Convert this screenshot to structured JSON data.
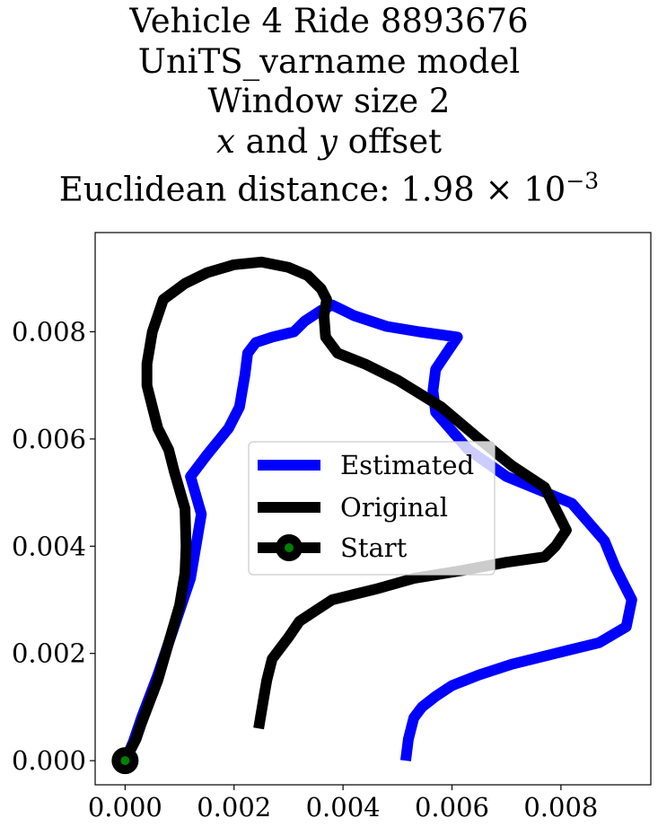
{
  "chart_data": {
    "type": "line",
    "title_lines": [
      "Vehicle 4 Ride 8893676",
      "UniTS_varname model",
      "Window size 2",
      "x and y offset",
      "Euclidean distance: 1.98 × 10^−3"
    ],
    "title_parts": {
      "x_var": "x",
      "and_word": " and ",
      "y_var": "y",
      "offset_word": " offset",
      "distance_prefix": "Euclidean distance: ",
      "distance_mantissa": "1.98",
      "times_sign": " × ",
      "distance_base": "10",
      "distance_exponent": "−3"
    },
    "xlabel": "",
    "ylabel": "",
    "xlim": [
      -0.00055,
      0.00965
    ],
    "ylim": [
      -0.00045,
      0.00985
    ],
    "x_ticks": [
      0.0,
      0.002,
      0.004,
      0.006,
      0.008
    ],
    "x_tick_labels": [
      "0.000",
      "0.002",
      "0.004",
      "0.006",
      "0.008"
    ],
    "y_ticks": [
      0.0,
      0.002,
      0.004,
      0.006,
      0.008
    ],
    "y_tick_labels": [
      "0.000",
      "0.002",
      "0.004",
      "0.006",
      "0.008"
    ],
    "grid": false,
    "legend_position": "center",
    "series": [
      {
        "name": "Estimated",
        "color": "#0000ff",
        "points": [
          [
            0.0,
            0.0
          ],
          [
            0.00015,
            0.00035
          ],
          [
            0.0003,
            0.0008
          ],
          [
            0.0006,
            0.0016
          ],
          [
            0.0009,
            0.0025
          ],
          [
            0.0012,
            0.0034
          ],
          [
            0.0014,
            0.0046
          ],
          [
            0.0012,
            0.0053
          ],
          [
            0.0015,
            0.0057
          ],
          [
            0.0019,
            0.0062
          ],
          [
            0.0021,
            0.0066
          ],
          [
            0.0022,
            0.0072
          ],
          [
            0.00225,
            0.0076
          ],
          [
            0.0024,
            0.0078
          ],
          [
            0.0027,
            0.0079
          ],
          [
            0.0031,
            0.008
          ],
          [
            0.0033,
            0.0082
          ],
          [
            0.0036,
            0.0084
          ],
          [
            0.0038,
            0.0085
          ],
          [
            0.0042,
            0.0083
          ],
          [
            0.0048,
            0.0081
          ],
          [
            0.0054,
            0.008
          ],
          [
            0.0061,
            0.0079
          ],
          [
            0.0059,
            0.0076
          ],
          [
            0.0057,
            0.0073
          ],
          [
            0.00565,
            0.0069
          ],
          [
            0.0057,
            0.0065
          ],
          [
            0.0063,
            0.0058
          ],
          [
            0.007,
            0.0053
          ],
          [
            0.0082,
            0.0048
          ],
          [
            0.0088,
            0.0041
          ],
          [
            0.009,
            0.0036
          ],
          [
            0.0093,
            0.003
          ],
          [
            0.0092,
            0.0025
          ],
          [
            0.0087,
            0.0022
          ],
          [
            0.0079,
            0.002
          ],
          [
            0.0071,
            0.0018
          ],
          [
            0.0065,
            0.0016
          ],
          [
            0.006,
            0.0014
          ],
          [
            0.0057,
            0.0012
          ],
          [
            0.00545,
            0.001
          ],
          [
            0.0053,
            0.0008
          ],
          [
            0.0052,
            0.0004
          ],
          [
            0.00515,
            0.0
          ]
        ]
      },
      {
        "name": "Original",
        "color": "#000000",
        "points": [
          [
            0.0,
            0.0
          ],
          [
            0.0002,
            0.0004
          ],
          [
            0.0003,
            0.0007
          ],
          [
            0.0006,
            0.0015
          ],
          [
            0.0008,
            0.0022
          ],
          [
            0.001,
            0.0029
          ],
          [
            0.0011,
            0.0035
          ],
          [
            0.00112,
            0.004
          ],
          [
            0.0011,
            0.0047
          ],
          [
            0.0009,
            0.0054
          ],
          [
            0.0008,
            0.0058
          ],
          [
            0.0006,
            0.0062
          ],
          [
            0.0005,
            0.0066
          ],
          [
            0.0004,
            0.007
          ],
          [
            0.0004,
            0.0074
          ],
          [
            0.0005,
            0.008
          ],
          [
            0.0007,
            0.0086
          ],
          [
            0.0011,
            0.0089
          ],
          [
            0.0015,
            0.0091
          ],
          [
            0.002,
            0.00925
          ],
          [
            0.0025,
            0.0093
          ],
          [
            0.003,
            0.0092
          ],
          [
            0.00335,
            0.00905
          ],
          [
            0.0036,
            0.0088
          ],
          [
            0.0037,
            0.0086
          ],
          [
            0.00365,
            0.0083
          ],
          [
            0.00368,
            0.0079
          ],
          [
            0.0039,
            0.0076
          ],
          [
            0.0044,
            0.0074
          ],
          [
            0.005,
            0.0071
          ],
          [
            0.0058,
            0.0066
          ],
          [
            0.0065,
            0.006
          ],
          [
            0.0071,
            0.0055
          ],
          [
            0.0077,
            0.0051
          ],
          [
            0.0079,
            0.0047
          ],
          [
            0.0081,
            0.0043
          ],
          [
            0.0079,
            0.004
          ],
          [
            0.0077,
            0.0038
          ],
          [
            0.007,
            0.0037
          ],
          [
            0.0062,
            0.00355
          ],
          [
            0.0053,
            0.0034
          ],
          [
            0.0046,
            0.0032
          ],
          [
            0.0042,
            0.0031
          ],
          [
            0.0038,
            0.003
          ],
          [
            0.0035,
            0.0028
          ],
          [
            0.0032,
            0.0026
          ],
          [
            0.003,
            0.0023
          ],
          [
            0.0027,
            0.0019
          ],
          [
            0.0026,
            0.0015
          ],
          [
            0.00255,
            0.0012
          ],
          [
            0.0025,
            0.0009
          ],
          [
            0.00245,
            0.0006
          ]
        ]
      }
    ],
    "start_point": {
      "name": "Start",
      "x": 0.0,
      "y": 0.0,
      "fill_color": "#008000",
      "edge_color": "#000000"
    },
    "legend": {
      "labels": [
        "Estimated",
        "Original",
        "Start"
      ]
    }
  }
}
